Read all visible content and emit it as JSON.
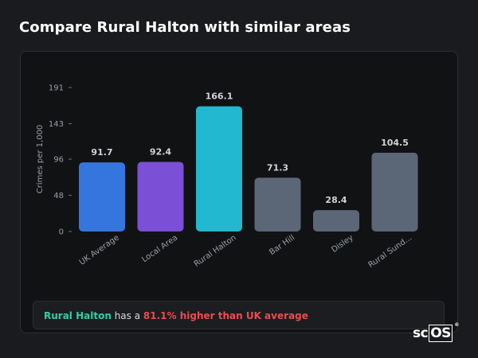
{
  "page": {
    "title": "Compare Rural Halton with similar areas"
  },
  "chart_data": {
    "type": "bar",
    "ylabel": "Crimes per 1,000",
    "xlabel": "",
    "ylim": [
      0,
      191
    ],
    "yticks": [
      0,
      48,
      96,
      143,
      191
    ],
    "categories": [
      "UK Average",
      "Local Area",
      "Rural Halton",
      "Bar Hill",
      "Disley",
      "Rural Sund..."
    ],
    "values": [
      91.7,
      92.4,
      166.1,
      71.3,
      28.4,
      104.5
    ],
    "value_labels": [
      "91.7",
      "92.4",
      "166.1",
      "71.3",
      "28.4",
      "104.5"
    ],
    "colors": [
      "#3576de",
      "#7b4fd6",
      "#21b8d0",
      "#5b6676",
      "#5b6676",
      "#5b6676"
    ],
    "grid": false
  },
  "summary": {
    "area": "Rural Halton",
    "middle": " has a ",
    "comparison": "81.1% higher than UK average"
  },
  "logo": {
    "prefix": "sc",
    "boxed": "OS",
    "mark": "®"
  }
}
